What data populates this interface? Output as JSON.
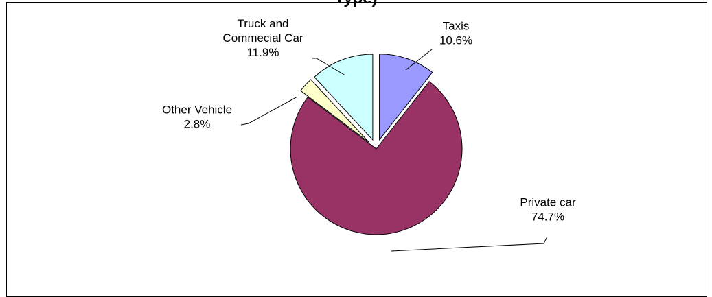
{
  "chart_data": {
    "type": "pie",
    "title": "Type)",
    "slices": [
      {
        "name": "Taxis",
        "value": 10.6,
        "label": "10.6%",
        "color": "#9999ff"
      },
      {
        "name": "Private car",
        "value": 74.7,
        "label": "74.7%",
        "color": "#993366"
      },
      {
        "name": "Other Vehicle",
        "value": 2.8,
        "label": "2.8%",
        "color": "#ffffcc"
      },
      {
        "name": "Truck and\nCommecial Car",
        "value": 11.9,
        "label": "11.9%",
        "color": "#ccffff"
      }
    ],
    "legend": "none"
  }
}
